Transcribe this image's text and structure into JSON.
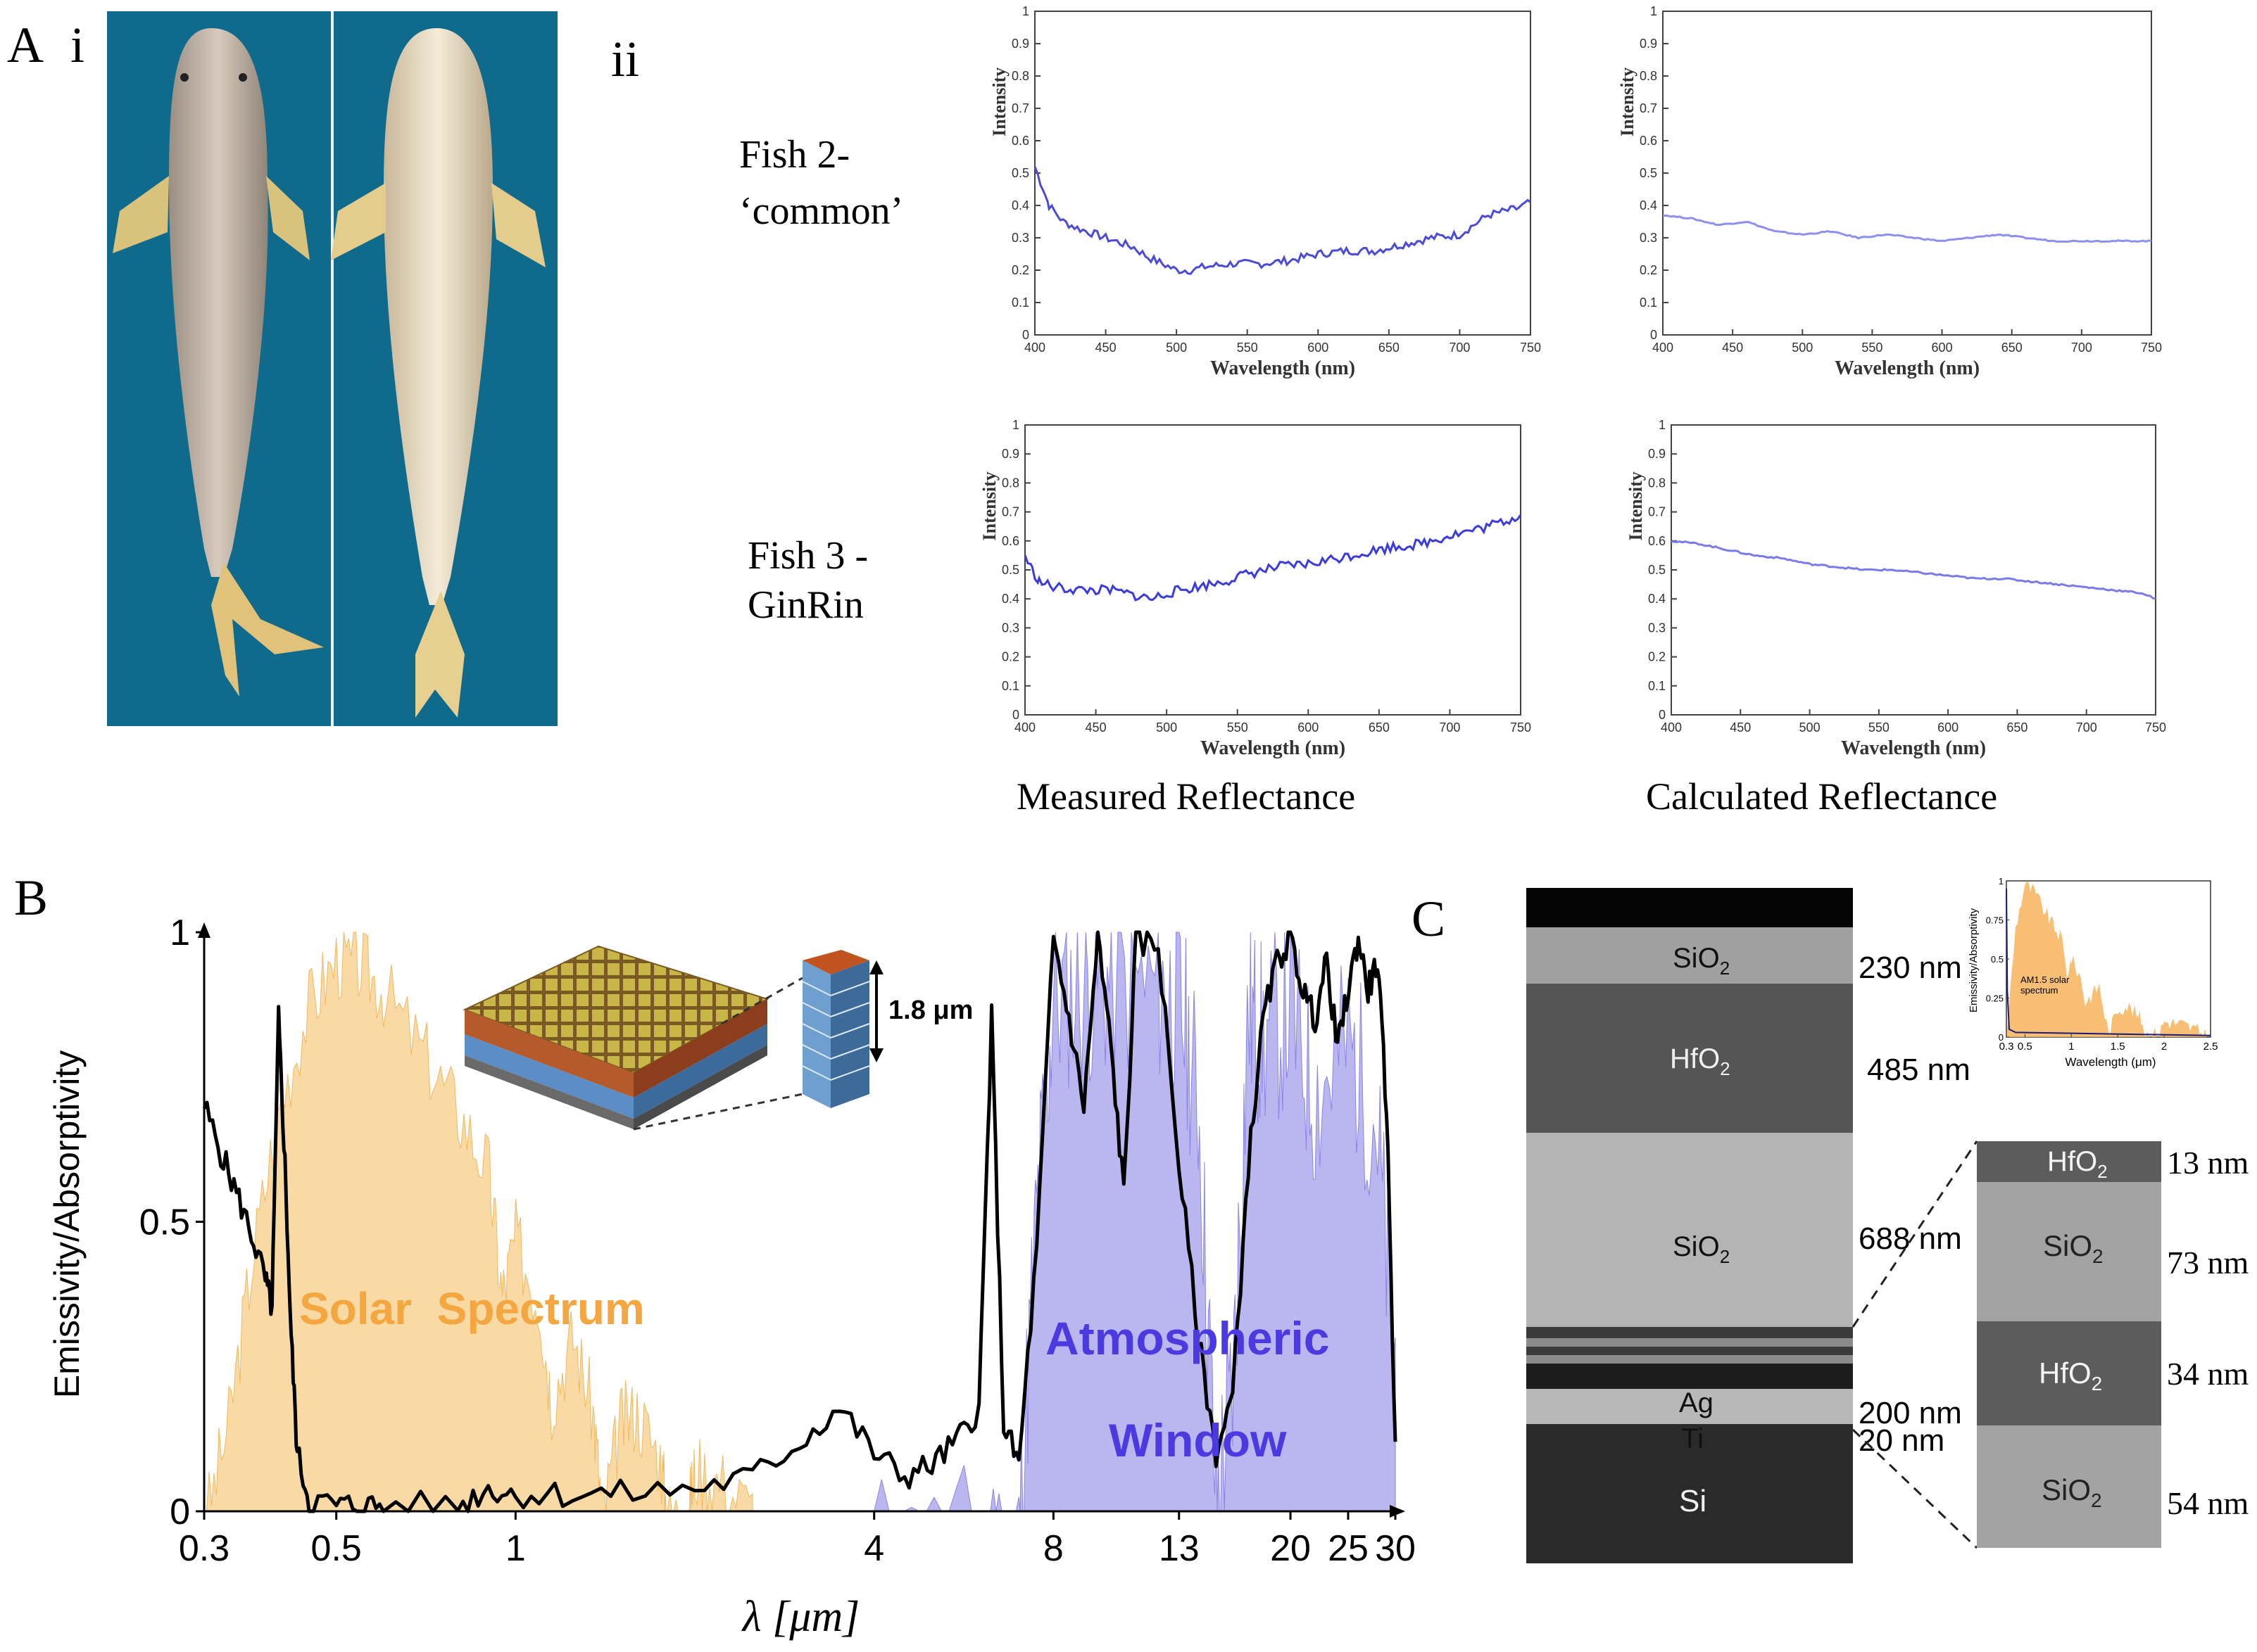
{
  "panel_labels": {
    "A": "A",
    "A_i": "i",
    "A_ii": "ii",
    "B": "B",
    "C": "C"
  },
  "panel_A": {
    "rows": [
      {
        "line1": "Fish 2-",
        "line2": "‘common’"
      },
      {
        "line1": "Fish 3 -",
        "line2": "GinRin"
      }
    ],
    "column_captions": [
      "Measured Reflectance",
      "Calculated Reflectance"
    ],
    "photo_background_color": "#0f6a8b"
  },
  "panel_B": {
    "ylabel": "Emissivity/Absorptivity",
    "xlabel": "λ [μm]",
    "solar_label": "Solar  Spectrum",
    "atm_label_1": "Atmospheric",
    "atm_label_2": "Window",
    "inset_label": "1.8 μm",
    "colors": {
      "solar": "#f7ce86",
      "atmospheric": "#9d98ea",
      "emissivity": "#000000"
    }
  },
  "panel_C": {
    "sem_layers": [
      {
        "name": "SiO",
        "sub": "2",
        "thickness": "230 nm"
      },
      {
        "name": "HfO",
        "sub": "2",
        "thickness": "485 nm"
      },
      {
        "name": "SiO",
        "sub": "2",
        "thickness": "688 nm"
      },
      {
        "name": "Ag",
        "sub": "",
        "thickness": "200 nm"
      },
      {
        "name": "Ti",
        "sub": "",
        "thickness": "20 nm"
      },
      {
        "name": "Si",
        "sub": "",
        "thickness": ""
      }
    ],
    "detail_layers": [
      {
        "name": "HfO",
        "sub": "2",
        "thickness": "13 nm"
      },
      {
        "name": "SiO",
        "sub": "2",
        "thickness": "73 nm"
      },
      {
        "name": "HfO",
        "sub": "2",
        "thickness": "34 nm"
      },
      {
        "name": "SiO",
        "sub": "2",
        "thickness": "54 nm"
      }
    ],
    "inset": {
      "ylabel": "Emissivity/Absorptivity",
      "xlabel": "Wavelength (μm)",
      "label_1": "AM1.5 solar",
      "label_2": "spectrum"
    }
  },
  "chart_data": [
    {
      "type": "line",
      "panel": "A-ii Fish 2 measured",
      "xlabel": "Wavelength (nm)",
      "ylabel": "Intensity",
      "xlim": [
        400,
        750
      ],
      "ylim": [
        0,
        1
      ],
      "x_ticks": [
        "400",
        "450",
        "500",
        "550",
        "600",
        "650",
        "700",
        "750"
      ],
      "y_ticks": [
        "0",
        "0.1",
        "0.2",
        "0.3",
        "0.4",
        "0.5",
        "0.6",
        "0.7",
        "0.8",
        "0.9",
        "1"
      ],
      "x": [
        400,
        405,
        410,
        420,
        430,
        450,
        470,
        480,
        490,
        500,
        510,
        520,
        540,
        560,
        580,
        600,
        620,
        640,
        660,
        680,
        700,
        710,
        720,
        730,
        740,
        750
      ],
      "y": [
        0.52,
        0.46,
        0.4,
        0.35,
        0.33,
        0.3,
        0.27,
        0.24,
        0.22,
        0.2,
        0.2,
        0.21,
        0.22,
        0.22,
        0.23,
        0.25,
        0.26,
        0.26,
        0.28,
        0.3,
        0.31,
        0.34,
        0.37,
        0.38,
        0.39,
        0.41
      ],
      "color": "#4b4bd8"
    },
    {
      "type": "line",
      "panel": "A-ii Fish 2 calculated",
      "xlabel": "Wavelength (nm)",
      "ylabel": "Intensity",
      "xlim": [
        400,
        750
      ],
      "ylim": [
        0,
        1
      ],
      "x_ticks": [
        "400",
        "450",
        "500",
        "550",
        "600",
        "650",
        "700",
        "750"
      ],
      "y_ticks": [
        "0",
        "0.1",
        "0.2",
        "0.3",
        "0.4",
        "0.5",
        "0.6",
        "0.7",
        "0.8",
        "0.9",
        "1"
      ],
      "x": [
        400,
        420,
        440,
        460,
        480,
        500,
        520,
        540,
        560,
        580,
        600,
        620,
        640,
        660,
        680,
        700,
        720,
        750
      ],
      "y": [
        0.37,
        0.36,
        0.34,
        0.35,
        0.32,
        0.31,
        0.32,
        0.3,
        0.31,
        0.3,
        0.29,
        0.3,
        0.31,
        0.3,
        0.29,
        0.29,
        0.29,
        0.29
      ],
      "color": "#8f8ff2"
    },
    {
      "type": "line",
      "panel": "A-ii Fish 3 measured",
      "xlabel": "Wavelength (nm)",
      "ylabel": "Intensity",
      "xlim": [
        400,
        750
      ],
      "ylim": [
        0,
        1
      ],
      "x_ticks": [
        "400",
        "450",
        "500",
        "550",
        "600",
        "650",
        "700",
        "750"
      ],
      "y_ticks": [
        "0",
        "0.1",
        "0.2",
        "0.3",
        "0.4",
        "0.5",
        "0.6",
        "0.7",
        "0.8",
        "0.9",
        "1"
      ],
      "x": [
        400,
        405,
        410,
        420,
        440,
        460,
        480,
        490,
        500,
        520,
        540,
        560,
        580,
        600,
        620,
        640,
        660,
        680,
        700,
        720,
        740,
        750
      ],
      "y": [
        0.55,
        0.5,
        0.46,
        0.44,
        0.43,
        0.43,
        0.41,
        0.4,
        0.42,
        0.44,
        0.46,
        0.49,
        0.51,
        0.52,
        0.54,
        0.56,
        0.58,
        0.59,
        0.62,
        0.64,
        0.67,
        0.69
      ],
      "color": "#3c3cdc"
    },
    {
      "type": "line",
      "panel": "A-ii Fish 3 calculated",
      "xlabel": "Wavelength (nm)",
      "ylabel": "Intensity",
      "xlim": [
        400,
        750
      ],
      "ylim": [
        0,
        1
      ],
      "x_ticks": [
        "400",
        "450",
        "500",
        "550",
        "600",
        "650",
        "700",
        "750"
      ],
      "y_ticks": [
        "0",
        "0.1",
        "0.2",
        "0.3",
        "0.4",
        "0.5",
        "0.6",
        "0.7",
        "0.8",
        "0.9",
        "1"
      ],
      "x": [
        400,
        420,
        440,
        460,
        480,
        500,
        520,
        540,
        560,
        580,
        600,
        620,
        640,
        660,
        680,
        700,
        720,
        740,
        750
      ],
      "y": [
        0.6,
        0.59,
        0.57,
        0.55,
        0.54,
        0.52,
        0.51,
        0.5,
        0.5,
        0.49,
        0.48,
        0.47,
        0.47,
        0.46,
        0.45,
        0.44,
        0.43,
        0.42,
        0.4
      ],
      "color": "#7a7aea"
    },
    {
      "type": "area",
      "panel": "B",
      "xlabel": "λ [μm]",
      "ylabel": "Emissivity/Absorptivity",
      "xscale": "log",
      "xlim": [
        0.3,
        30
      ],
      "ylim": [
        0,
        1
      ],
      "x_ticks": [
        "0.3",
        "0.5",
        "1",
        "4",
        "8",
        "13",
        "20",
        "25",
        "30"
      ],
      "y_ticks": [
        "0",
        "0.5",
        "1"
      ],
      "series": [
        {
          "name": "Solar  Spectrum",
          "x": [
            0.3,
            0.33,
            0.36,
            0.4,
            0.45,
            0.5,
            0.55,
            0.6,
            0.7,
            0.8,
            0.9,
            0.95,
            1.0,
            1.1,
            1.15,
            1.25,
            1.35,
            1.4,
            1.5,
            1.6,
            1.75,
            1.8,
            1.95,
            2.0,
            2.2,
            2.5
          ],
          "y": [
            0,
            0.18,
            0.45,
            0.72,
            0.9,
            0.98,
            0.97,
            0.93,
            0.82,
            0.72,
            0.62,
            0.4,
            0.5,
            0.38,
            0.22,
            0.33,
            0.2,
            0.02,
            0.18,
            0.2,
            0.12,
            0.02,
            0.02,
            0.1,
            0.08,
            0.03
          ]
        },
        {
          "name": "Atmospheric Window",
          "x": [
            4,
            6,
            7,
            7.5,
            8,
            9,
            10,
            12,
            13,
            14,
            15,
            16,
            17,
            18,
            20,
            22,
            25,
            28,
            30
          ],
          "y": [
            0,
            0.01,
            0.03,
            0.6,
            0.97,
            0.99,
            1.0,
            0.99,
            0.97,
            0.8,
            0.1,
            0.3,
            0.95,
            0.9,
            0.95,
            0.8,
            0.9,
            0.75,
            0.3
          ]
        },
        {
          "name": "",
          "x": [
            0.3,
            0.32,
            0.34,
            0.36,
            0.38,
            0.39,
            0.4,
            0.41,
            0.42,
            0.43,
            0.45,
            0.5,
            0.55,
            0.6,
            0.8,
            0.9,
            1.0,
            1.2,
            1.5,
            2.0,
            2.5,
            3.0,
            3.5,
            4.0,
            4.5,
            5.0,
            5.5,
            6.0,
            6.3,
            6.6,
            7.0,
            7.5,
            8.0,
            8.5,
            9,
            9.5,
            10,
            10.5,
            11,
            12,
            13,
            14,
            15,
            16,
            17,
            18,
            19,
            20,
            21,
            22,
            23,
            24,
            25,
            26,
            27,
            28,
            29,
            30
          ],
          "y": [
            0.7,
            0.62,
            0.55,
            0.48,
            0.4,
            0.35,
            0.85,
            0.6,
            0.3,
            0.1,
            0.02,
            0.01,
            0.01,
            0.01,
            0.01,
            0.04,
            0.03,
            0.03,
            0.03,
            0.04,
            0.06,
            0.12,
            0.18,
            0.1,
            0.06,
            0.08,
            0.12,
            0.18,
            0.85,
            0.15,
            0.08,
            0.45,
            0.99,
            0.85,
            0.7,
            0.99,
            0.8,
            0.55,
            0.98,
            0.98,
            0.6,
            0.3,
            0.1,
            0.2,
            0.6,
            0.85,
            0.95,
            0.99,
            0.9,
            0.85,
            0.95,
            0.8,
            0.9,
            0.99,
            0.9,
            0.95,
            0.7,
            0.12
          ]
        }
      ]
    },
    {
      "type": "area",
      "panel": "C inset",
      "xlabel": "Wavelength (μm)",
      "ylabel": "Emissivity/Absorptivity",
      "xlim": [
        0.3,
        2.5
      ],
      "ylim": [
        0,
        1
      ],
      "x_ticks": [
        "0.3",
        "0.5",
        "1",
        "1.5",
        "2",
        "2.5"
      ],
      "y_ticks": [
        "0",
        "0.25",
        "0.5",
        "0.75",
        "1"
      ],
      "series": [
        {
          "name": "AM1.5 solar spectrum",
          "x": [
            0.3,
            0.4,
            0.5,
            0.6,
            0.7,
            0.8,
            0.9,
            0.95,
            1.0,
            1.1,
            1.15,
            1.3,
            1.4,
            1.5,
            1.6,
            1.75,
            1.8,
            1.95,
            2.0,
            2.2,
            2.4,
            2.5
          ],
          "y": [
            0,
            0.7,
            0.98,
            0.93,
            0.82,
            0.72,
            0.62,
            0.4,
            0.5,
            0.38,
            0.22,
            0.33,
            0.02,
            0.18,
            0.2,
            0.12,
            0.02,
            0.02,
            0.1,
            0.08,
            0.03,
            0.0
          ]
        }
      ]
    }
  ]
}
